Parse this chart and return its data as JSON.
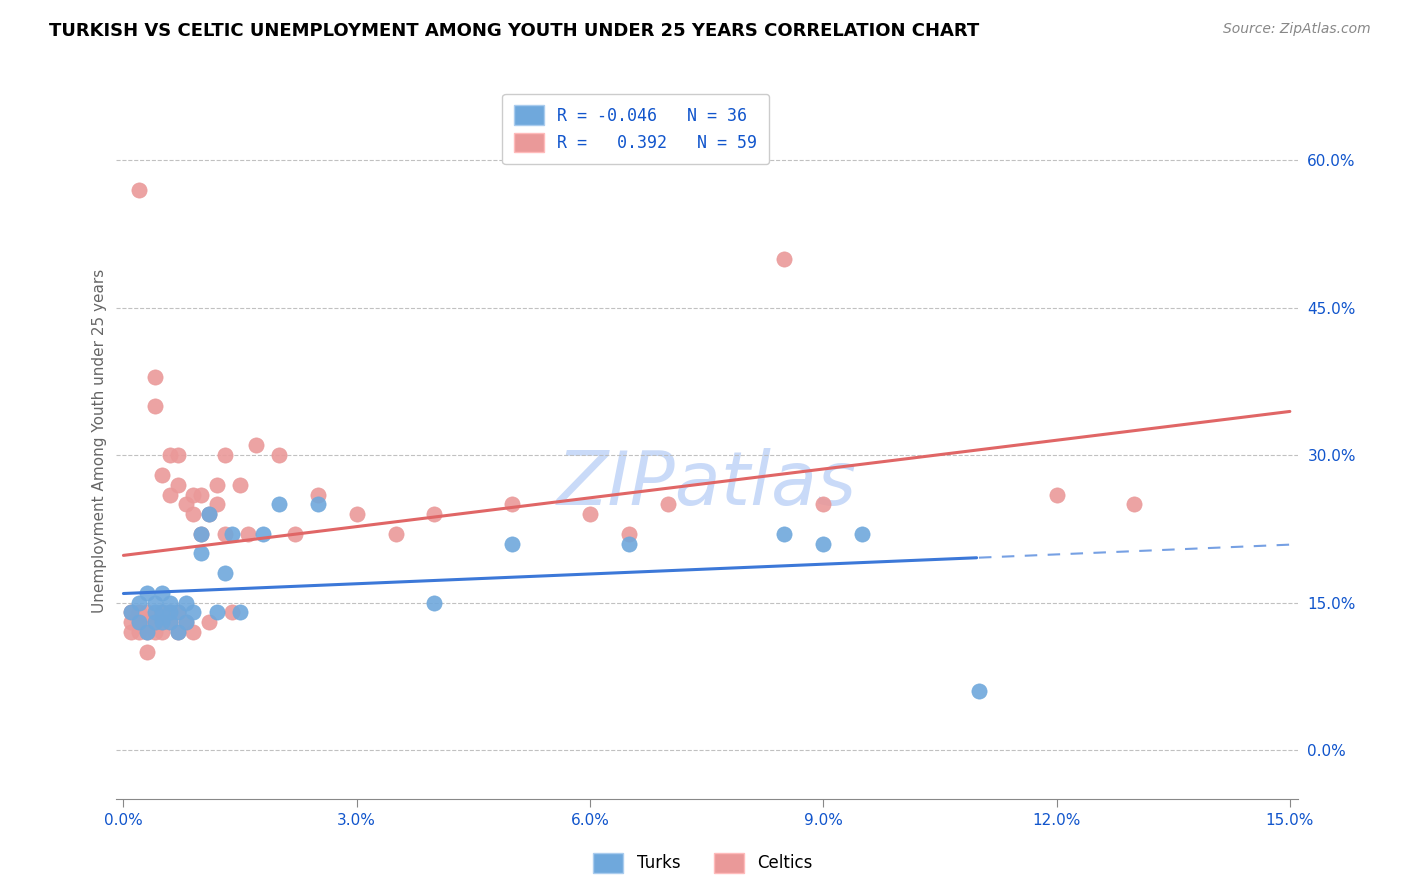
{
  "title": "TURKISH VS CELTIC UNEMPLOYMENT AMONG YOUTH UNDER 25 YEARS CORRELATION CHART",
  "source": "Source: ZipAtlas.com",
  "ylabel": "Unemployment Among Youth under 25 years",
  "xlim": [
    0.0,
    0.15
  ],
  "ylim": [
    -0.05,
    0.68
  ],
  "xticks": [
    0.0,
    0.03,
    0.06,
    0.09,
    0.12,
    0.15
  ],
  "xtick_labels": [
    "0.0%",
    "3.0%",
    "6.0%",
    "9.0%",
    "12.0%",
    "15.0%"
  ],
  "yticks": [
    0.0,
    0.15,
    0.3,
    0.45,
    0.6
  ],
  "ytick_labels": [
    "0.0%",
    "15.0%",
    "30.0%",
    "45.0%",
    "60.0%"
  ],
  "turks_R": "-0.046",
  "turks_N": "36",
  "celtics_R": "0.392",
  "celtics_N": "59",
  "turks_color": "#6fa8dc",
  "celtics_color": "#ea9999",
  "turks_line_color": "#3c78d8",
  "celtics_line_color": "#e06666",
  "watermark": "ZIPatlas",
  "watermark_color": "#c9daf8",
  "turks_x": [
    0.001,
    0.002,
    0.002,
    0.003,
    0.003,
    0.004,
    0.004,
    0.004,
    0.005,
    0.005,
    0.005,
    0.006,
    0.006,
    0.006,
    0.007,
    0.007,
    0.008,
    0.008,
    0.009,
    0.01,
    0.01,
    0.011,
    0.012,
    0.013,
    0.014,
    0.015,
    0.018,
    0.02,
    0.025,
    0.04,
    0.05,
    0.065,
    0.085,
    0.09,
    0.095,
    0.11
  ],
  "turks_y": [
    0.14,
    0.13,
    0.15,
    0.12,
    0.16,
    0.14,
    0.15,
    0.13,
    0.14,
    0.16,
    0.13,
    0.14,
    0.15,
    0.13,
    0.14,
    0.12,
    0.13,
    0.15,
    0.14,
    0.2,
    0.22,
    0.24,
    0.14,
    0.18,
    0.22,
    0.14,
    0.22,
    0.25,
    0.25,
    0.15,
    0.21,
    0.21,
    0.22,
    0.21,
    0.22,
    0.06
  ],
  "celtics_x": [
    0.001,
    0.001,
    0.001,
    0.002,
    0.002,
    0.002,
    0.002,
    0.003,
    0.003,
    0.003,
    0.003,
    0.003,
    0.004,
    0.004,
    0.004,
    0.004,
    0.005,
    0.005,
    0.005,
    0.005,
    0.006,
    0.006,
    0.006,
    0.006,
    0.007,
    0.007,
    0.007,
    0.007,
    0.008,
    0.008,
    0.009,
    0.009,
    0.009,
    0.01,
    0.01,
    0.011,
    0.011,
    0.012,
    0.012,
    0.013,
    0.013,
    0.014,
    0.015,
    0.016,
    0.017,
    0.02,
    0.022,
    0.025,
    0.03,
    0.035,
    0.04,
    0.05,
    0.06,
    0.065,
    0.07,
    0.085,
    0.09,
    0.12,
    0.13
  ],
  "celtics_y": [
    0.13,
    0.12,
    0.14,
    0.12,
    0.14,
    0.57,
    0.13,
    0.13,
    0.12,
    0.14,
    0.13,
    0.1,
    0.13,
    0.35,
    0.38,
    0.12,
    0.14,
    0.28,
    0.12,
    0.13,
    0.26,
    0.3,
    0.13,
    0.14,
    0.27,
    0.3,
    0.12,
    0.14,
    0.25,
    0.13,
    0.26,
    0.24,
    0.12,
    0.22,
    0.26,
    0.24,
    0.13,
    0.25,
    0.27,
    0.22,
    0.3,
    0.14,
    0.27,
    0.22,
    0.31,
    0.3,
    0.22,
    0.26,
    0.24,
    0.22,
    0.24,
    0.25,
    0.24,
    0.22,
    0.25,
    0.5,
    0.25,
    0.26,
    0.25
  ]
}
